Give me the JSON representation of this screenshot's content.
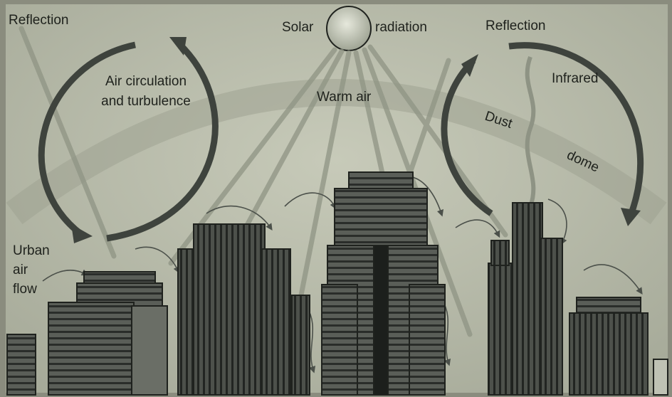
{
  "labels": {
    "reflection_left": "Reflection",
    "solar": "Solar",
    "radiation": "radiation",
    "reflection_right": "Reflection",
    "air_circulation": [
      "Air circulation",
      "and turbulence"
    ],
    "warm_air": "Warm air",
    "infrared": "Infrared",
    "dust": "Dust",
    "dome": "dome",
    "urban_air_flow": [
      "Urban",
      "air",
      "flow"
    ]
  }
}
